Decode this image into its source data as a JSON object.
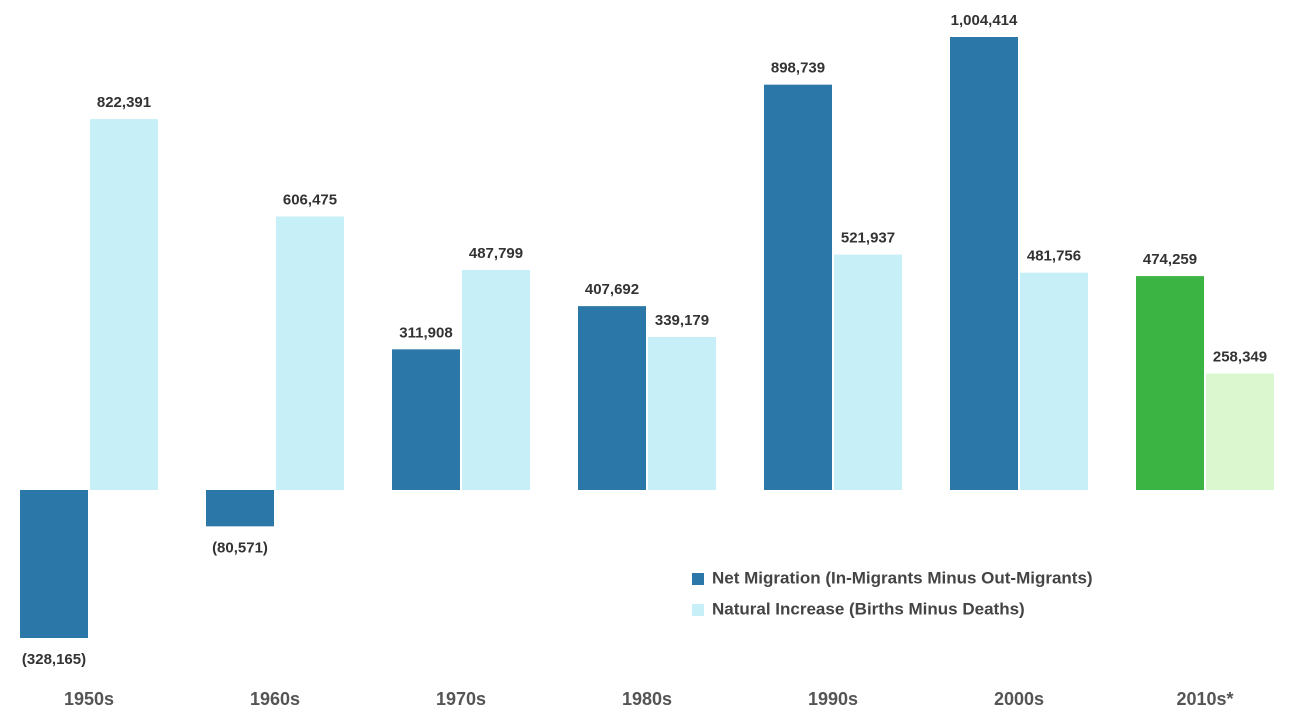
{
  "chart_data": {
    "type": "bar",
    "categories": [
      "1950s",
      "1960s",
      "1970s",
      "1980s",
      "1990s",
      "2000s",
      "2010s*"
    ],
    "series": [
      {
        "name": "Net Migration (In-Migrants Minus Out-Migrants)",
        "colors": [
          "#2b78a8",
          "#2b78a8",
          "#2b78a8",
          "#2b78a8",
          "#2b78a8",
          "#2b78a8",
          "#3bb444"
        ],
        "values": [
          -328165,
          -80571,
          311908,
          407692,
          898739,
          1004414,
          474259
        ],
        "value_labels": [
          "(328,165)",
          "(80,571)",
          "311,908",
          "407,692",
          "898,739",
          "1,004,414",
          "474,259"
        ]
      },
      {
        "name": "Natural Increase (Births Minus Deaths)",
        "colors": [
          "#c6eff8",
          "#c6eff8",
          "#c6eff8",
          "#c6eff8",
          "#c6eff8",
          "#c6eff8",
          "#daf7cf"
        ],
        "values": [
          822391,
          606475,
          487799,
          339179,
          521937,
          481756,
          258349
        ],
        "value_labels": [
          "822,391",
          "606,475",
          "487,799",
          "339,179",
          "521,937",
          "481,756",
          "258,349"
        ]
      }
    ]
  }
}
